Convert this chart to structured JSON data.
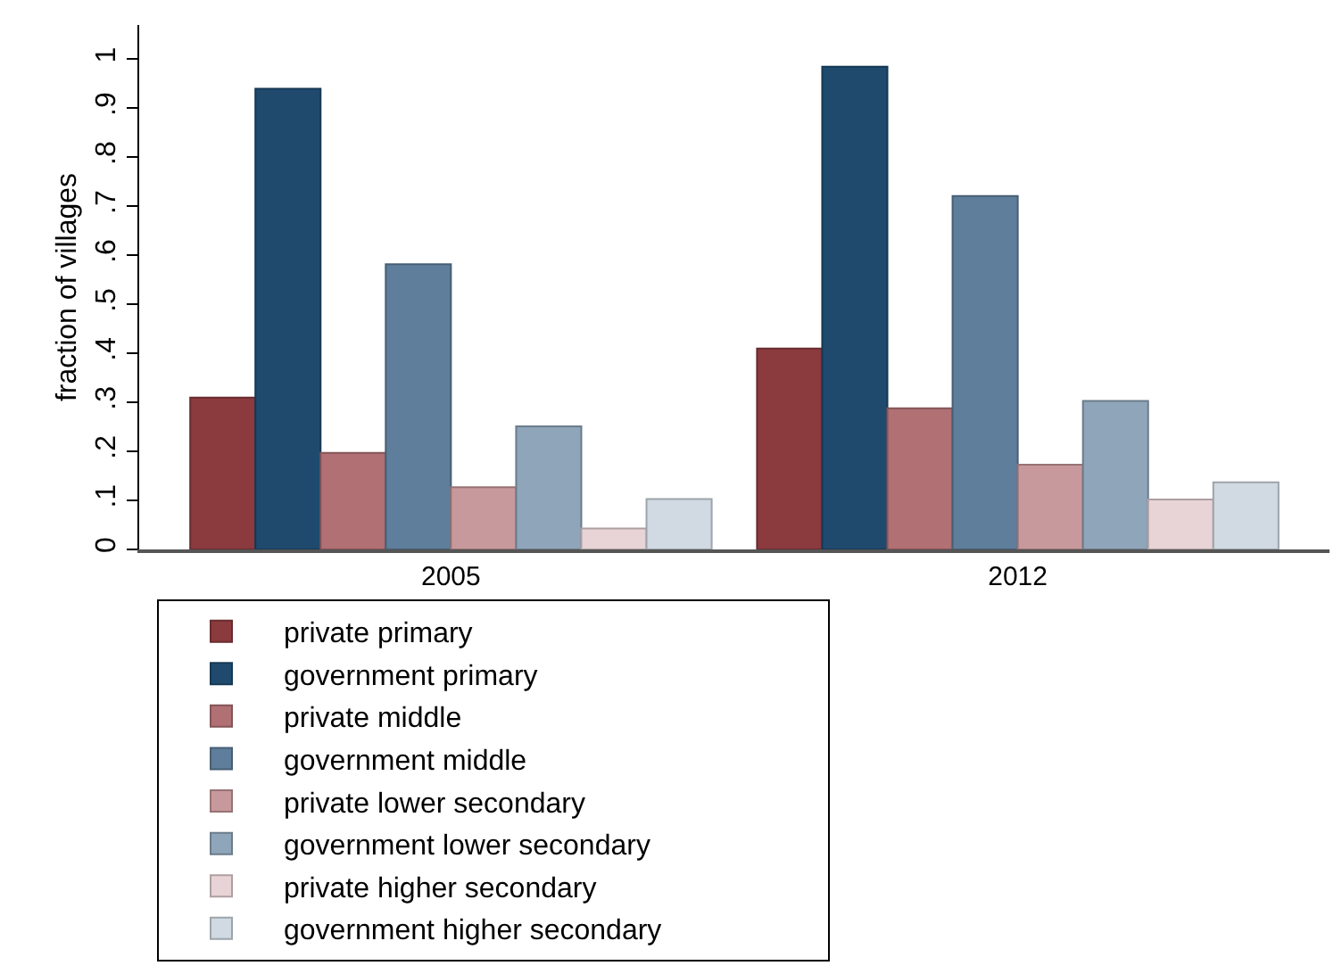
{
  "chart_data": {
    "type": "bar",
    "ylabel": "fraction of villages",
    "categories": [
      "2005",
      "2012"
    ],
    "series": [
      {
        "name": "private primary",
        "color": "#8b3a3e",
        "values": [
          0.31,
          0.41
        ]
      },
      {
        "name": "government primary",
        "color": "#1f4a6e",
        "values": [
          0.94,
          0.985
        ]
      },
      {
        "name": "private middle",
        "color": "#b07074",
        "values": [
          0.197,
          0.288
        ]
      },
      {
        "name": "government middle",
        "color": "#5f7e9b",
        "values": [
          0.582,
          0.721
        ]
      },
      {
        "name": "private lower secondary",
        "color": "#c8999c",
        "values": [
          0.127,
          0.173
        ]
      },
      {
        "name": "government lower secondary",
        "color": "#8fa5b9",
        "values": [
          0.251,
          0.303
        ]
      },
      {
        "name": "private higher secondary",
        "color": "#e8d4d6",
        "values": [
          0.043,
          0.102
        ]
      },
      {
        "name": "government higher secondary",
        "color": "#d1dae3",
        "values": [
          0.103,
          0.137
        ]
      }
    ],
    "ylim": [
      0,
      1.07
    ],
    "yticks": [
      0,
      {
        "value": 0.1,
        "label": ".1"
      },
      {
        "value": 0.2,
        "label": ".2"
      },
      {
        "value": 0.3,
        "label": ".3"
      },
      {
        "value": 0.4,
        "label": ".4"
      },
      {
        "value": 0.5,
        "label": ".5"
      },
      {
        "value": 0.6,
        "label": ".6"
      },
      {
        "value": 0.7,
        "label": ".7"
      },
      {
        "value": 0.8,
        "label": ".8"
      },
      {
        "value": 0.9,
        "label": ".9"
      },
      1
    ],
    "grid": false,
    "legend": "bottom"
  }
}
